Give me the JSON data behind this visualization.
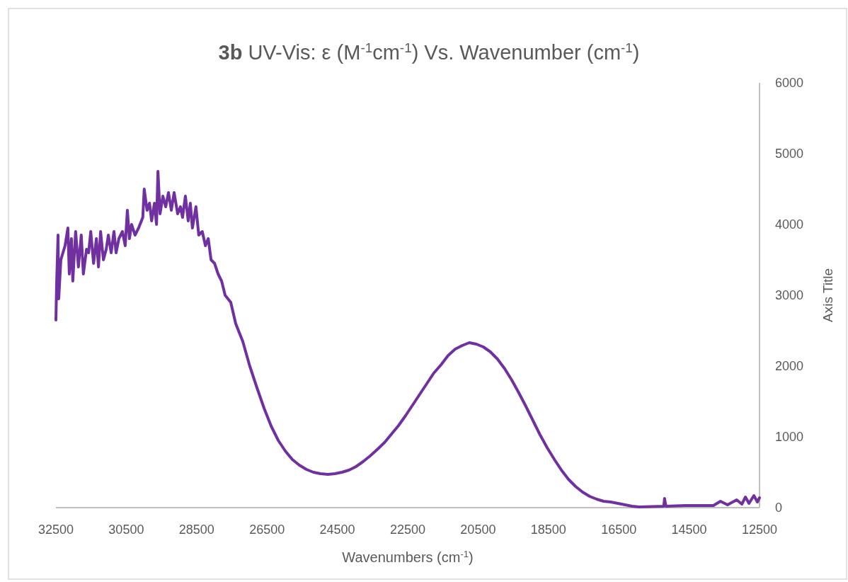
{
  "chart_data": {
    "type": "line",
    "title": "3b UV-Vis: ε (M$^{-1}$cm$^{-1}$) Vs. Wavenumber (cm$^{-1}$)",
    "xlabel": "Wavenumbers (cm$^{-1}$)",
    "ylabel": "Axis Title",
    "xlim": [
      32500,
      12500
    ],
    "xticks": [
      32500,
      30500,
      28500,
      26500,
      24500,
      22500,
      20500,
      18500,
      16500,
      14500,
      12500
    ],
    "ylim": [
      0,
      6000
    ],
    "yticks": [
      0,
      1000,
      2000,
      3000,
      4000,
      5000,
      6000
    ],
    "grid": false,
    "marker": "none",
    "line_style": "solid",
    "series": [
      {
        "color": "#7030a0",
        "x": [
          32500,
          32480,
          32440,
          32420,
          32360,
          32240,
          32160,
          32120,
          32060,
          32020,
          31940,
          31860,
          31780,
          31720,
          31630,
          31570,
          31510,
          31430,
          31350,
          31290,
          31230,
          31150,
          31070,
          31010,
          30930,
          30850,
          30790,
          30710,
          30610,
          30530,
          30470,
          30410,
          30350,
          30250,
          30150,
          30030,
          29990,
          29910,
          29840,
          29780,
          29700,
          29640,
          29600,
          29540,
          29460,
          29380,
          29300,
          29220,
          29140,
          29040,
          28960,
          28900,
          28820,
          28740,
          28680,
          28620,
          28520,
          28440,
          28340,
          28250,
          28170,
          28090,
          27990,
          27890,
          27790,
          27690,
          27530,
          27390,
          27190,
          26990,
          26790,
          26580,
          26380,
          26180,
          25980,
          25780,
          25580,
          25380,
          25180,
          24980,
          24770,
          24570,
          24370,
          24170,
          23970,
          23770,
          23570,
          23370,
          23160,
          22960,
          22760,
          22560,
          22360,
          22160,
          21960,
          21760,
          21550,
          21350,
          21150,
          20950,
          20750,
          20550,
          20350,
          20150,
          19950,
          19740,
          19540,
          19340,
          19140,
          18940,
          18740,
          18540,
          18330,
          18130,
          17930,
          17730,
          17530,
          17330,
          17130,
          16930,
          16730,
          16520,
          16320,
          16120,
          15920,
          15220,
          15200,
          15160,
          14610,
          13810,
          13610,
          13410,
          13150,
          13000,
          12900,
          12800,
          12660,
          12560,
          12500
        ],
        "values": [
          2650,
          3150,
          3850,
          2950,
          3500,
          3700,
          3950,
          3300,
          3800,
          3200,
          3900,
          3400,
          3850,
          3300,
          3650,
          3600,
          3900,
          3450,
          3800,
          3400,
          3900,
          3500,
          3650,
          3850,
          3600,
          3900,
          3600,
          3800,
          3900,
          3700,
          4200,
          3800,
          4000,
          3850,
          3950,
          4100,
          4500,
          4200,
          4300,
          4050,
          4300,
          4000,
          4750,
          4150,
          4400,
          4250,
          4450,
          4200,
          4450,
          4150,
          4250,
          4100,
          4400,
          4050,
          4300,
          3950,
          4250,
          3850,
          3900,
          3700,
          3800,
          3500,
          3450,
          3300,
          3200,
          3000,
          2900,
          2600,
          2350,
          2000,
          1700,
          1400,
          1150,
          950,
          800,
          680,
          600,
          540,
          500,
          480,
          470,
          480,
          500,
          530,
          580,
          650,
          730,
          820,
          920,
          1040,
          1160,
          1300,
          1450,
          1600,
          1750,
          1900,
          2020,
          2150,
          2240,
          2290,
          2330,
          2310,
          2270,
          2200,
          2100,
          1960,
          1800,
          1620,
          1430,
          1230,
          1030,
          850,
          680,
          530,
          400,
          300,
          220,
          160,
          120,
          90,
          80,
          60,
          40,
          20,
          10,
          20,
          130,
          20,
          30,
          30,
          90,
          40,
          110,
          50,
          150,
          60,
          170,
          80,
          140
        ]
      }
    ]
  }
}
